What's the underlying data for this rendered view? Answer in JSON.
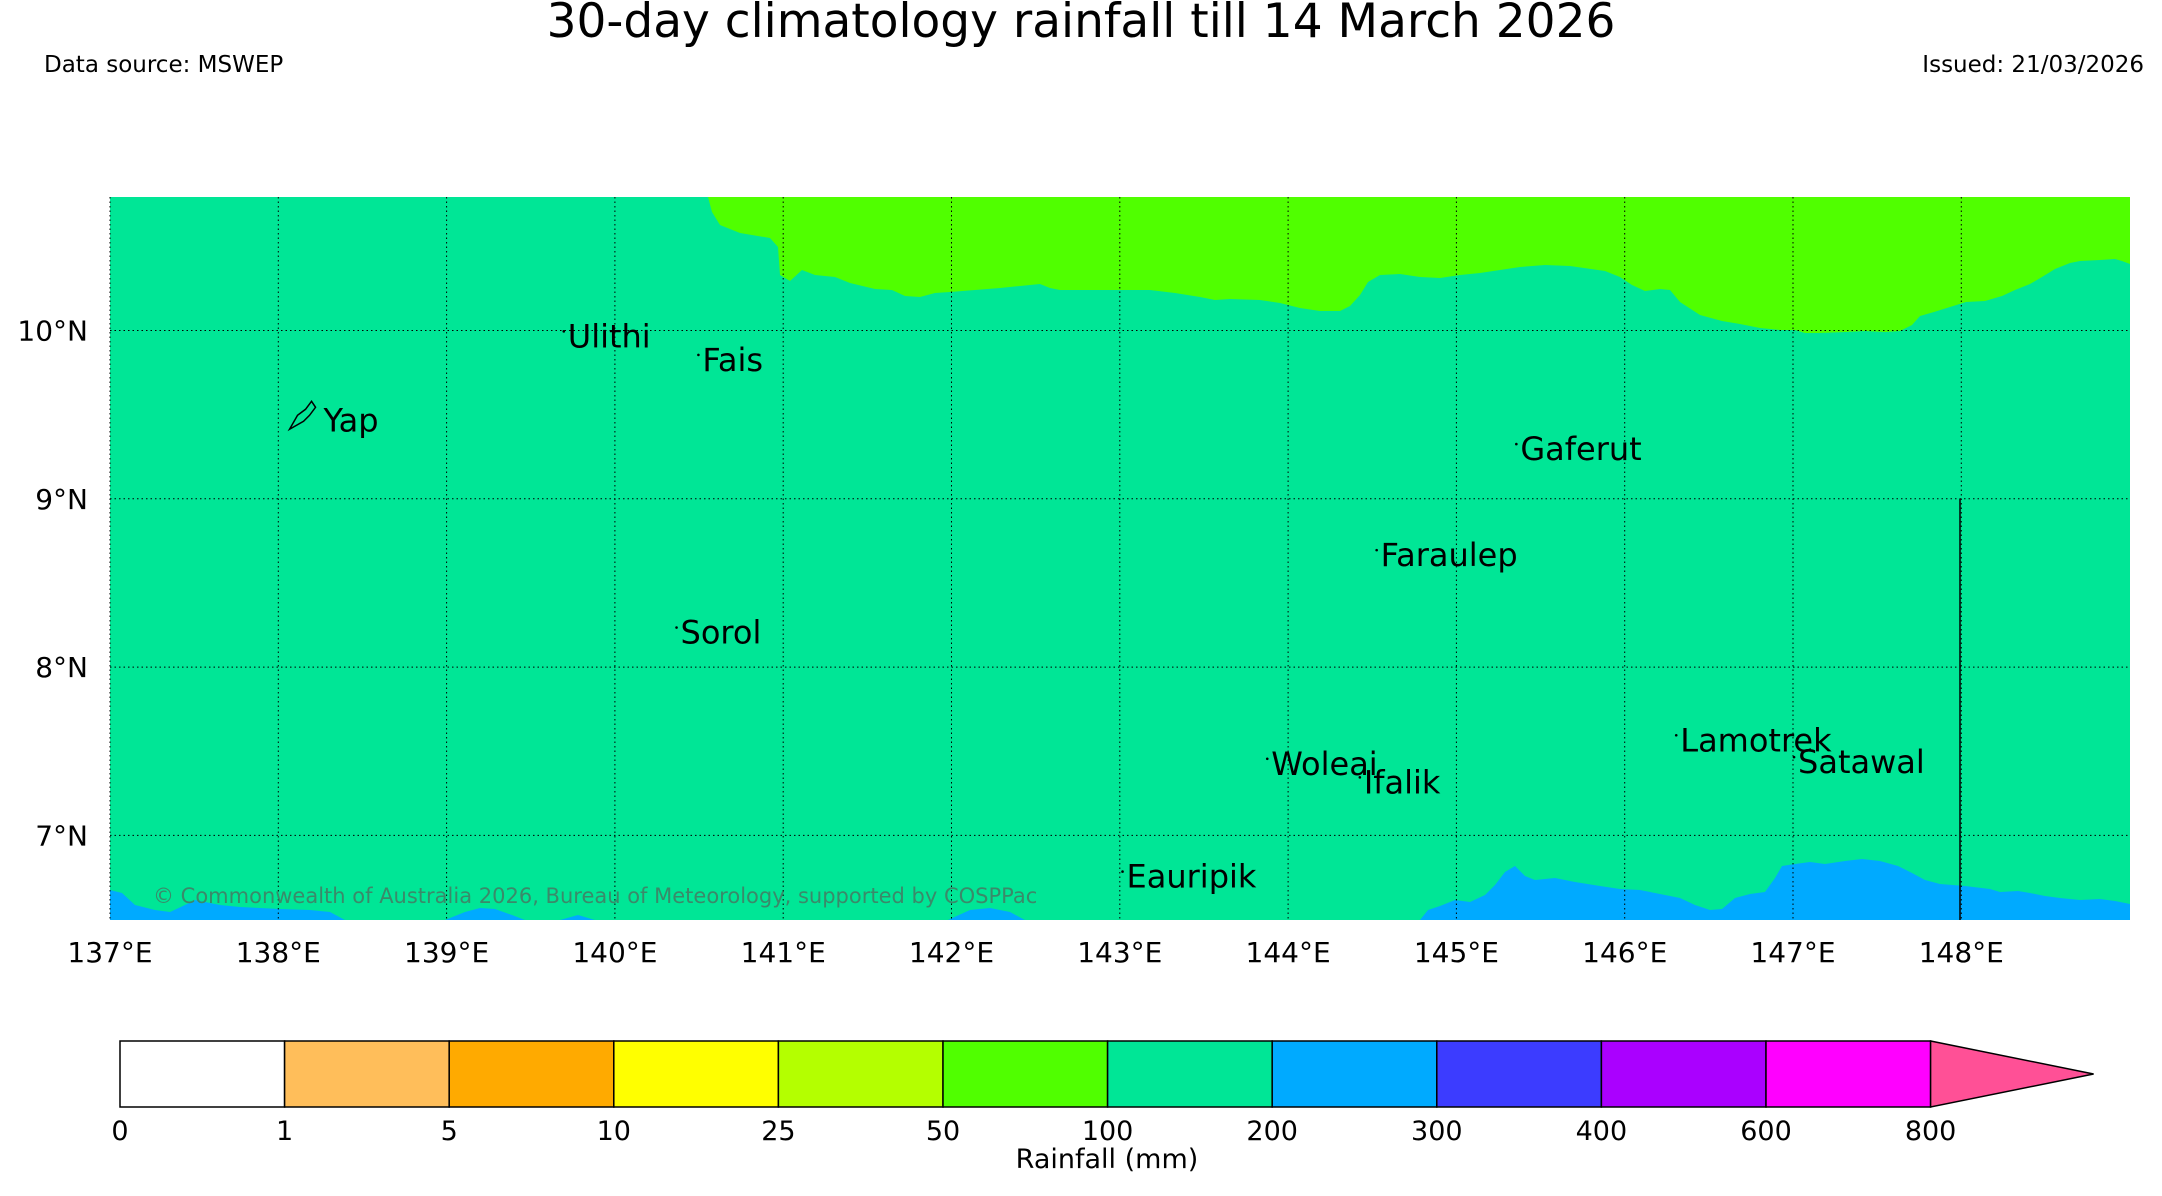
{
  "header": {
    "title": "30-day climatology rainfall till 14 March 2026",
    "data_source": "Data source: MSWEP",
    "issued": "Issued: 21/03/2026"
  },
  "map": {
    "lon_range": [
      137,
      149
    ],
    "lat_range": [
      6.5,
      10.8
    ],
    "lon_ticks": [
      {
        "value": 137,
        "label": "137°E"
      },
      {
        "value": 138,
        "label": "138°E"
      },
      {
        "value": 139,
        "label": "139°E"
      },
      {
        "value": 140,
        "label": "140°E"
      },
      {
        "value": 141,
        "label": "141°E"
      },
      {
        "value": 142,
        "label": "142°E"
      },
      {
        "value": 143,
        "label": "143°E"
      },
      {
        "value": 144,
        "label": "144°E"
      },
      {
        "value": 145,
        "label": "145°E"
      },
      {
        "value": 146,
        "label": "146°E"
      },
      {
        "value": 147,
        "label": "147°E"
      },
      {
        "value": 148,
        "label": "148°E"
      }
    ],
    "lat_ticks": [
      {
        "value": 10,
        "label": "10°N"
      },
      {
        "value": 9,
        "label": "9°N"
      },
      {
        "value": 8,
        "label": "8°N"
      },
      {
        "value": 7,
        "label": "7°N"
      }
    ],
    "islands": [
      {
        "name": "Yap",
        "lon": 138.15,
        "lat": 9.52
      },
      {
        "name": "Ulithi",
        "lon": 139.72,
        "lat": 9.9
      },
      {
        "name": "Fais",
        "lon": 140.52,
        "lat": 9.76
      },
      {
        "name": "Gaferut",
        "lon": 145.38,
        "lat": 9.23
      },
      {
        "name": "Faraulep",
        "lon": 144.55,
        "lat": 8.6
      },
      {
        "name": "Sorol",
        "lon": 140.39,
        "lat": 8.14
      },
      {
        "name": "Woleai",
        "lon": 143.9,
        "lat": 7.36
      },
      {
        "name": "Ifalik",
        "lon": 144.45,
        "lat": 7.25
      },
      {
        "name": "Lamotrek",
        "lon": 146.33,
        "lat": 7.5
      },
      {
        "name": "Satawal",
        "lon": 147.03,
        "lat": 7.37
      },
      {
        "name": "Eauripik",
        "lon": 143.04,
        "lat": 6.69
      }
    ],
    "zones": {
      "background": "#00e696",
      "north": "#50ff00",
      "south": "#00aaff"
    },
    "copyright": "© Commonwealth of Australia 2026, Bureau of Meteorology, supported by COSPPac"
  },
  "legend": {
    "label": "Rainfall (mm)",
    "bins": [
      {
        "color": "#ffffff"
      },
      {
        "color": "#ffbe5a"
      },
      {
        "color": "#ffaa00"
      },
      {
        "color": "#ffff00"
      },
      {
        "color": "#b4ff00"
      },
      {
        "color": "#50ff00"
      },
      {
        "color": "#00e696"
      },
      {
        "color": "#00aaff"
      },
      {
        "color": "#3c3cff"
      },
      {
        "color": "#aa00ff"
      },
      {
        "color": "#ff00ff"
      }
    ],
    "overflow_color": "#ff5096",
    "ticks": [
      "0",
      "1",
      "5",
      "10",
      "25",
      "50",
      "100",
      "200",
      "300",
      "400",
      "600",
      "800"
    ]
  }
}
